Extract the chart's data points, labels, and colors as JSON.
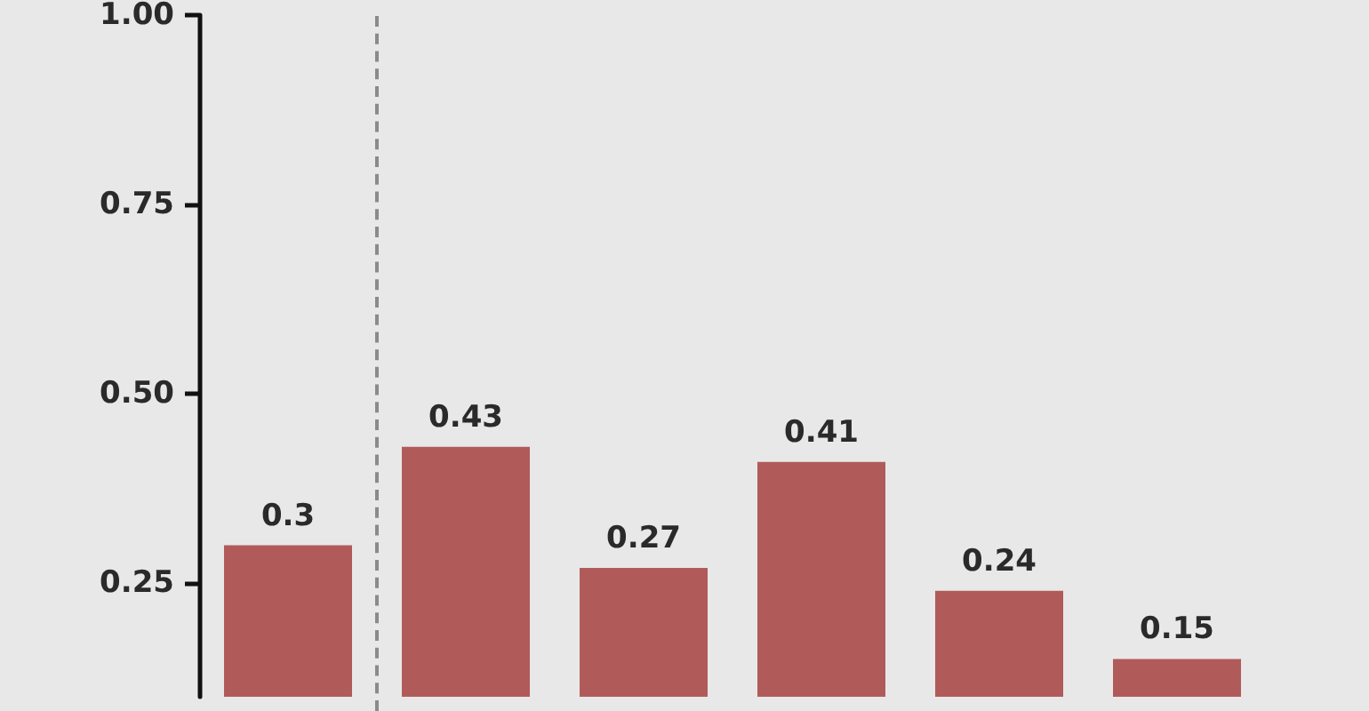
{
  "chart_data": {
    "type": "bar",
    "categories": [
      null,
      null,
      null,
      null,
      null,
      null
    ],
    "values": [
      0.3,
      0.43,
      0.27,
      0.41,
      0.24,
      0.15
    ],
    "color": "#b05b5a",
    "data_labels": true,
    "ylim": [
      0.1,
      1.0
    ],
    "yticks": [
      {
        "value": 0.25,
        "label": "0.25"
      },
      {
        "value": 0.5,
        "label": "0.50"
      },
      {
        "value": 0.75,
        "label": "0.75"
      },
      {
        "value": 1.0,
        "label": "1.00"
      }
    ],
    "grid": false
  }
}
